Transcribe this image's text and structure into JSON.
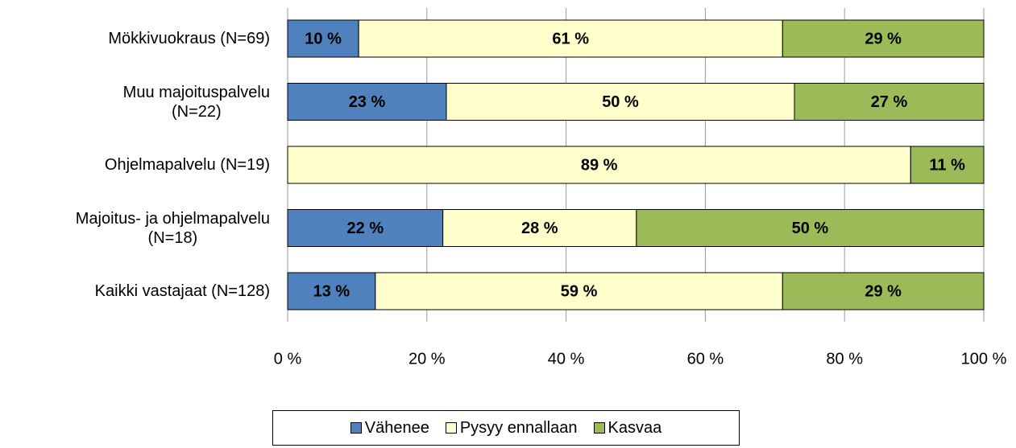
{
  "chart_data": {
    "type": "stacked-bar-horizontal",
    "categories": [
      "Mökkivuokraus (N=69)",
      "Muu majoituspalvelu\n(N=22)",
      "Ohjelmapalvelu (N=19)",
      "Majoitus- ja ohjelmapalvelu\n(N=18)",
      "Kaikki vastajaat (N=128)"
    ],
    "series": [
      {
        "name": "Vähenee",
        "color": "#4f81bd",
        "values": [
          10.2,
          22.8,
          0,
          22.3,
          12.6
        ],
        "value_labels": [
          "10 %",
          "23 %",
          null,
          "22 %",
          "13 %"
        ]
      },
      {
        "name": "Pysyy ennallaan",
        "color": "#ffffcc",
        "values": [
          60.9,
          50.0,
          89.5,
          27.8,
          58.5
        ],
        "value_labels": [
          "61 %",
          "50 %",
          "89 %",
          "28 %",
          "59 %"
        ]
      },
      {
        "name": "Kasvaa",
        "color": "#9bbb59",
        "values": [
          28.9,
          27.2,
          10.5,
          49.9,
          28.9
        ],
        "value_labels": [
          "29 %",
          "27 %",
          "11 %",
          "50 %",
          "29 %"
        ]
      }
    ],
    "xlim": [
      0,
      100
    ],
    "xticks": [
      {
        "value": 0,
        "label": "0 %"
      },
      {
        "value": 20,
        "label": "20 %"
      },
      {
        "value": 40,
        "label": "40 %"
      },
      {
        "value": 60,
        "label": "60 %"
      },
      {
        "value": 80,
        "label": "80 %"
      },
      {
        "value": 100,
        "label": "100 %"
      }
    ],
    "grid": true,
    "legend": "bottom"
  }
}
